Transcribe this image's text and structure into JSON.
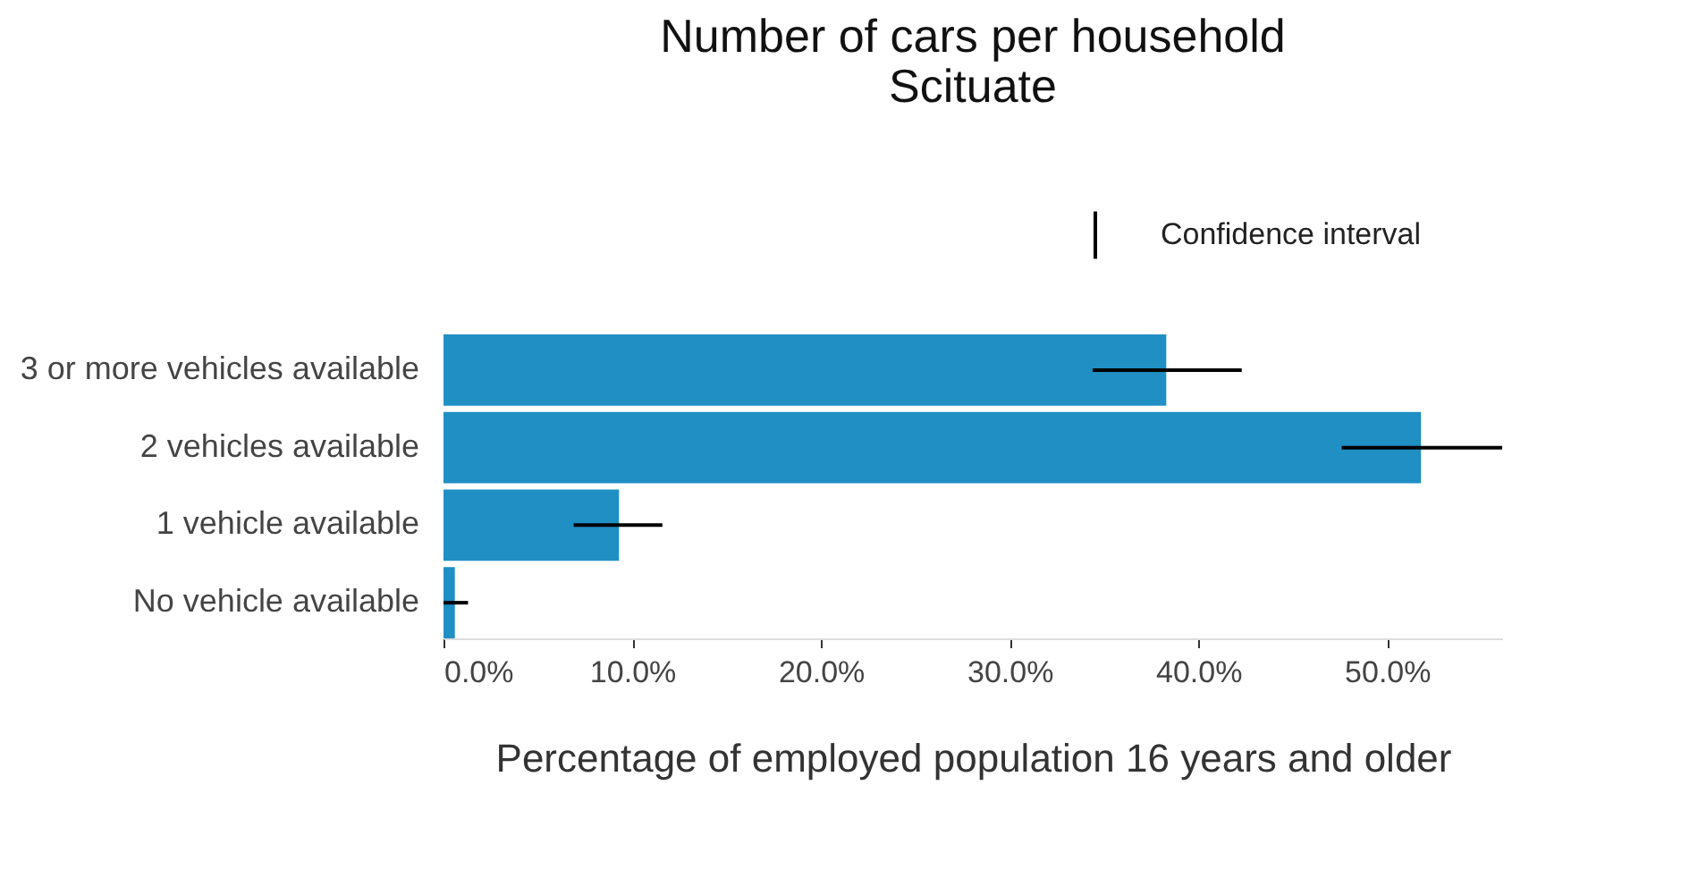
{
  "chart_data": {
    "type": "bar",
    "orientation": "horizontal",
    "title": [
      "Number of cars per household",
      "Scituate"
    ],
    "categories": [
      "3 or more vehicles available",
      "2 vehicles available",
      "1 vehicle available",
      "No vehicle available"
    ],
    "values": [
      38.3,
      51.8,
      9.3,
      0.6
    ],
    "errors": [
      [
        34.4,
        42.3
      ],
      [
        47.6,
        56.1
      ],
      [
        6.9,
        11.6
      ],
      [
        0.0,
        1.3
      ]
    ],
    "color": "#1f8fc4",
    "xlabel": "Percentage of employed population 16 years and older",
    "xlim": [
      0,
      56.1
    ],
    "xticks": [
      {
        "value": 0,
        "label": "0.0%"
      },
      {
        "value": 10,
        "label": "10.0%"
      },
      {
        "value": 20,
        "label": "20.0%"
      },
      {
        "value": 30,
        "label": "30.0%"
      },
      {
        "value": 40,
        "label": "40.0%"
      },
      {
        "value": 50,
        "label": "50.0%"
      }
    ],
    "annotations": [
      "Confidence interval"
    ],
    "grid": false
  }
}
